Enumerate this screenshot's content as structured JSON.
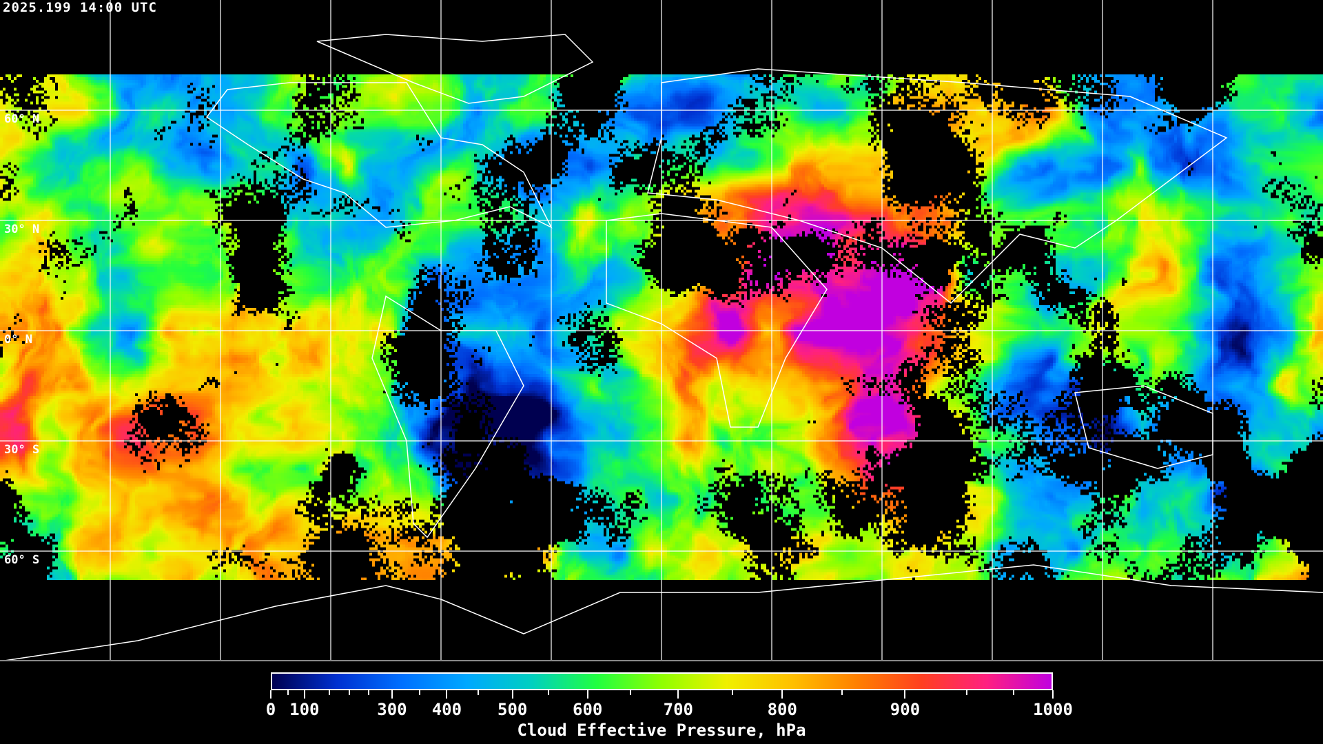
{
  "header": {
    "timestamp": "2025.199 14:00 UTC"
  },
  "map": {
    "projection": "equirectangular",
    "gridlines": true,
    "coastlines_color": "#ffffff",
    "latitude_labels": [
      "60° N",
      "30° N",
      "0° N",
      "30° S",
      "60° S"
    ]
  },
  "colorbar": {
    "title": "Cloud Effective Pressure, hPa",
    "tick_labels": [
      "0",
      "100",
      "300",
      "400",
      "500",
      "600",
      "700",
      "800",
      "900",
      "1000"
    ],
    "range": [
      0,
      1000
    ],
    "colors": [
      "#000050",
      "#0030d0",
      "#0070ff",
      "#00a8ff",
      "#00d0c0",
      "#20ff40",
      "#90ff00",
      "#f0f000",
      "#ffc000",
      "#ff8000",
      "#ff4020",
      "#ff2080",
      "#c000e0"
    ]
  }
}
